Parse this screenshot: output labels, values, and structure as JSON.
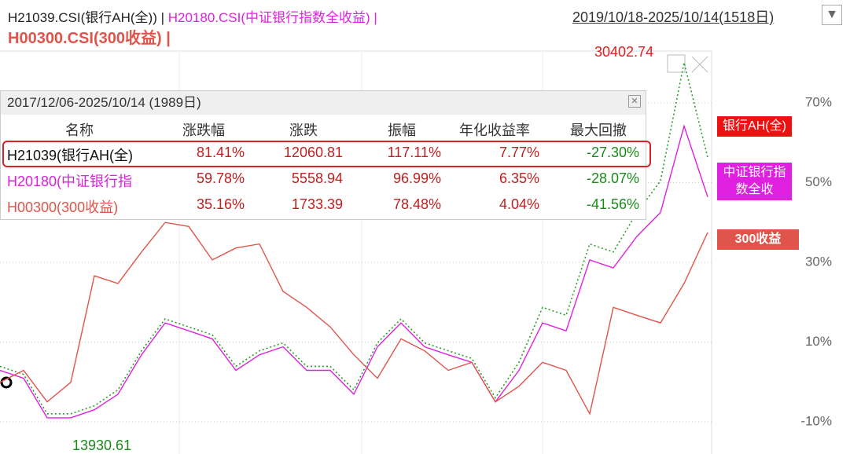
{
  "header": {
    "line1": [
      "H21039.CSI(银行AH(全)) |",
      "H20180.CSI(中证银行指数全收益) |"
    ],
    "line2": "H00300.CSI(300收益) |",
    "range": "2019/10/18-2025/10/14(1518日)"
  },
  "table": {
    "title": "2017/12/06-2025/10/14 (1989日)",
    "columns": [
      "名称",
      "涨跌幅",
      "涨跌",
      "振幅",
      "年化收益率",
      "最大回撤"
    ],
    "rows": [
      [
        "H21039(银行AH(全)",
        "81.41%",
        "12060.81",
        "117.11%",
        "7.77%",
        "-27.30%"
      ],
      [
        "H20180(中证银行指",
        "59.78%",
        "5558.94",
        "96.99%",
        "6.35%",
        "-28.07%"
      ],
      [
        "H00300(300收益)",
        "35.16%",
        "1733.39",
        "78.48%",
        "4.04%",
        "-41.56%"
      ]
    ]
  },
  "chart_data": {
    "type": "line",
    "ylim": [
      -17.5,
      83
    ],
    "yticks": [
      {
        "value": 70,
        "label": "70%"
      },
      {
        "value": 50,
        "label": "50%"
      },
      {
        "value": 30,
        "label": "30%"
      },
      {
        "value": 10,
        "label": "10%"
      },
      {
        "value": -10,
        "label": "-10%"
      }
    ],
    "grid": true,
    "annotations": [
      "30402.74",
      "13930.61"
    ],
    "series": [
      {
        "name": "银行AH(全)",
        "color": "#2a9d2a",
        "values": [
          3.9,
          1.9,
          -8,
          -8,
          -6,
          -2,
          7.8,
          15.8,
          13.8,
          11.8,
          3.9,
          7.8,
          9.8,
          3.9,
          3.9,
          -2,
          9.8,
          15.8,
          9.8,
          7.8,
          5.9,
          -4,
          4.9,
          18.7,
          16.7,
          34.6,
          32.6,
          42.5,
          50.4,
          80.1,
          56.3
        ]
      },
      {
        "name": "中证银行指数全收",
        "color": "#e020e0",
        "values": [
          2.9,
          0.9,
          -9,
          -9,
          -7,
          -3.1,
          6.8,
          14.8,
          12.8,
          10.8,
          2.9,
          6.8,
          8.8,
          2.9,
          2.9,
          -3.1,
          8.8,
          14.8,
          8.8,
          6.8,
          4.9,
          -5,
          2.9,
          14.8,
          12.8,
          30.6,
          28.6,
          36.5,
          42.5,
          64.2,
          46.4
        ]
      },
      {
        "name": "300收益",
        "color": "#e0554b",
        "values": [
          -0.1,
          2.9,
          -5,
          -0.1,
          26.6,
          24.7,
          32.6,
          40,
          39,
          30.6,
          33.6,
          34.6,
          22.7,
          18.7,
          13.8,
          6.8,
          0.9,
          10.8,
          7.8,
          2.9,
          4.9,
          -5,
          -1.1,
          4.9,
          2.9,
          -8,
          18.7,
          16.7,
          14.8,
          24.7,
          37.5
        ]
      }
    ]
  }
}
